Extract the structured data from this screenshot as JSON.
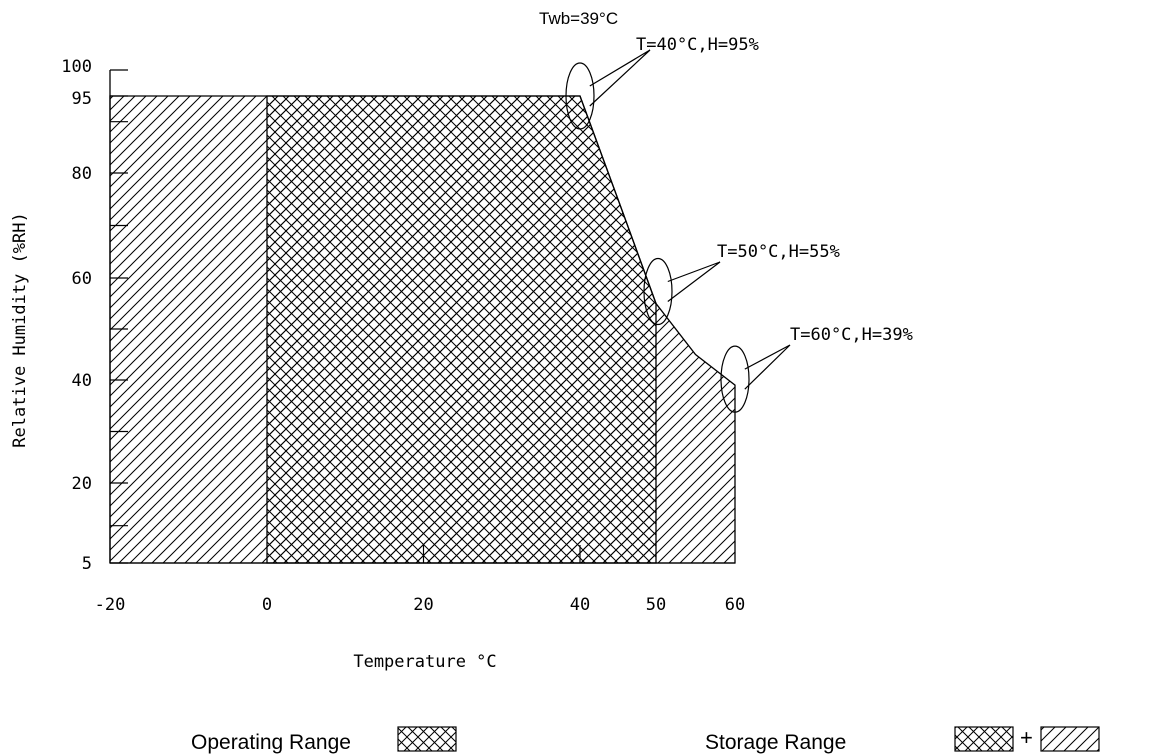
{
  "chart_data": {
    "type": "area",
    "xlabel": "Temperature °C",
    "ylabel": "Relative Humidity (%RH)",
    "xlim": [
      -20,
      60
    ],
    "ylim": [
      5,
      100
    ],
    "x_ticks": [
      {
        "value": -20,
        "label": "-20"
      },
      {
        "value": 0,
        "label": "0"
      },
      {
        "value": 20,
        "label": "20"
      },
      {
        "value": 40,
        "label": "40"
      },
      {
        "value": 50,
        "label": "50"
      },
      {
        "value": 60,
        "label": "60"
      }
    ],
    "y_ticks": [
      {
        "value": 5,
        "label": "5"
      },
      {
        "value": 20,
        "label": "20"
      },
      {
        "value": 40,
        "label": "40"
      },
      {
        "value": 60,
        "label": "60"
      },
      {
        "value": 80,
        "label": "80"
      },
      {
        "value": 95,
        "label": "95"
      },
      {
        "value": 100,
        "label": "100"
      }
    ],
    "series": [
      {
        "name": "Storage Range",
        "pattern": "diagonal hatch",
        "boundary": [
          [
            -20,
            5
          ],
          [
            -20,
            95
          ],
          [
            40,
            95
          ],
          [
            45,
            75
          ],
          [
            50,
            55
          ],
          [
            55,
            45
          ],
          [
            60,
            39
          ],
          [
            60,
            5
          ]
        ]
      },
      {
        "name": "Operating Range",
        "pattern": "cross hatch",
        "boundary": [
          [
            0,
            5
          ],
          [
            0,
            95
          ],
          [
            40,
            95
          ],
          [
            45,
            75
          ],
          [
            50,
            55
          ],
          [
            50,
            5
          ]
        ]
      }
    ],
    "annotations": [
      {
        "label": "Twb=39°C"
      },
      {
        "label": "T=40°C,H=95%",
        "x": 40,
        "y": 95
      },
      {
        "label": "T=50°C,H=55%",
        "x": 50,
        "y": 55
      },
      {
        "label": "T=60°C,H=39%",
        "x": 60,
        "y": 39
      }
    ],
    "legend": {
      "placement": "bottom",
      "items": [
        {
          "label": "Operating Range",
          "swatch": [
            "cross hatch"
          ]
        },
        {
          "label": "Storage Range",
          "swatch": [
            "cross hatch",
            "+",
            "diagonal hatch"
          ]
        }
      ]
    },
    "grid": false,
    "colors": {
      "line": "#000000",
      "background": "#ffffff"
    }
  }
}
